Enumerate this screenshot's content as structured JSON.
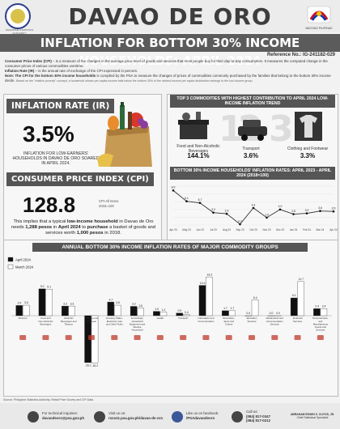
{
  "header": {
    "title": "DAVAO DE ORO",
    "psa_logo_text": "PHILIPPINE STATISTICS AUTHORITY",
    "bp_logo_text": "BAGONG PILIPINAS",
    "banner": "INFLATION FOR BOTTOM 30% INCOME HOUSEHOLDS: APRIL 2024",
    "reference": "Reference No.: IG-241182-029"
  },
  "definitions": {
    "cpi_term": "Consumer Price Index (CPI)",
    "cpi_def": " – is a measure of the changes in the average price level of goods and services that most people buy for their day-to-day consumption. It measures the computed change in the consumer prices of various commodities overtime.",
    "ir_term": "Inflation Rate (IR)",
    "ir_def": " – is the annual rate of exchange of the CPI expressed in percent.",
    "note_term": "Note:",
    "note_bold": " The CPI for the bottom 30% income households",
    "note_def": " is compiled by the PSA to measure the changes of prices of commodities commonly purchased by the families that belong to the bottom 30% income decile.",
    "note_small": "Based on the \"relative poverty\" concept, a household whose per capita income falls below the bottom 30% of the ranked income per capita distribution belongs to the low-income group."
  },
  "inflation": {
    "heading": "INFLATION RATE (IR)",
    "value": "3.5%",
    "description": "INFLATION FOR LOW-EARNERS' HOUSEHOLDS IN DAVAO DE ORO SOARED IN APRIL 2024."
  },
  "cpi": {
    "heading": "CONSUMER PRICE INDEX (CPI)",
    "value": "128.8",
    "base_line1": "CPI-All Items",
    "base_line2": "2018=100",
    "desc_pre": "This implies that a typical ",
    "desc_b1": "low-income household",
    "desc_mid1": " in Davao de Oro needs ",
    "desc_b2": "1,288 pesos",
    "desc_mid2": " in ",
    "desc_b3": "April 2024",
    "desc_mid3": " to ",
    "desc_b4": "purchase",
    "desc_mid4": " a basket of goods and services worth ",
    "desc_b5": "1,000 pesos",
    "desc_end": " in 2018."
  },
  "top3": {
    "heading": "TOP 3 COMMODITIES WITH HIGHEST CONTRIBUTION TO APRIL 2024 LOW-INCOME INFLATION TREND",
    "items": [
      {
        "rank": "1",
        "name": "Food and Non-Alcoholic Beverages",
        "value": "144.1%"
      },
      {
        "rank": "2",
        "name": "Transport",
        "value": "3.6%"
      },
      {
        "rank": "3",
        "name": "Clothing and Footwear",
        "value": "3.3%"
      }
    ]
  },
  "colors": {
    "april": "#111111",
    "march": "#ffffff",
    "header_gray": "#555555",
    "line": "#333333"
  },
  "chart_data": [
    {
      "type": "line",
      "title": "BOTTOM 30% INCOME HOUSEHOLDS' INFLATION RATES: APRIL 2023 - APRIL 2024 (2018=100)",
      "categories": [
        "Apr 2023",
        "May 2023",
        "Jun 2023",
        "Jul 2023",
        "Aug 2023",
        "Sep 2023",
        "Oct 2023",
        "Nov 2023",
        "Dec 2023",
        "Jan 2024",
        "Feb 2024",
        "Mar 2024",
        "Apr 2024"
      ],
      "tick_labels": [
        "Apr 23",
        "May 23",
        "Jun 23",
        "Jul 23",
        "Aug 23",
        "Sep 23",
        "Oct 23",
        "Nov 23",
        "Dec 23",
        "Jan 24",
        "Feb 24",
        "Mar 24",
        "Apr 24"
      ],
      "values": [
        8.9,
        6.1,
        5.7,
        3.2,
        2.9,
        0.2,
        4.4,
        1.9,
        4.0,
        2.8,
        3.0,
        3.6,
        3.5
      ],
      "ylim": [
        0,
        10
      ],
      "grid": true
    },
    {
      "type": "bar",
      "title": "ANNUAL BOTTOM 30% INCOME INFLATION RATES OF MAJOR COMMODITY GROUPS",
      "categories": [
        "All items",
        "Food and Non-Alcoholic Beverages",
        "Alcoholic Beverages and Tobacco",
        "Clothing and Footwear",
        "Housing, Water, Electricity, Gas and Other Fuels",
        "Furnishings, Household Equipment and Routine Household Maintenance",
        "Health",
        "Transport",
        "Information and Communication",
        "Recreation, Sport and Culture",
        "Education Services",
        "Restaurants and Accommodation Services",
        "Financial Services",
        "Personal Care, and Miscellaneous Goods and Services"
      ],
      "series": [
        {
          "name": "April 2024",
          "values": [
            3.5,
            9.2,
            3.3,
            -16.1,
            4.7,
            3.2,
            1.5,
            0.9,
            10.4,
            1.7,
            0.0,
            0.0,
            6.1,
            2.4
          ]
        },
        {
          "name": "March 2024",
          "values": [
            3.6,
            9.1,
            3.3,
            -16.2,
            3.6,
            2.6,
            1.2,
            0.4,
            13.3,
            1.7,
            5.4,
            0.0,
            11.7,
            2.4
          ]
        }
      ],
      "ylim": [
        -20,
        15
      ],
      "legend": "top-left"
    }
  ],
  "source": "Source: Philippine Statistics Authority, Retail Price Survey and CPI Data",
  "footer": {
    "tech_label": "For technical inquiries:",
    "email": "davaodeoro@psa.gov.ph",
    "web_label": "Visit us on:",
    "web": "rsso11.psa.gov.ph/davao-de-oro",
    "fb_label": "Like us on facebook:",
    "fb": "/PSAdavaodeoro",
    "call_label": "Call us:",
    "phone1": "(084) 817-0347",
    "phone2": "(084) 817-0212",
    "signatory": "ABRAHAM EDWIN S. CUYOS, JR.",
    "signatory_title": "Chief Statistical Specialist"
  }
}
